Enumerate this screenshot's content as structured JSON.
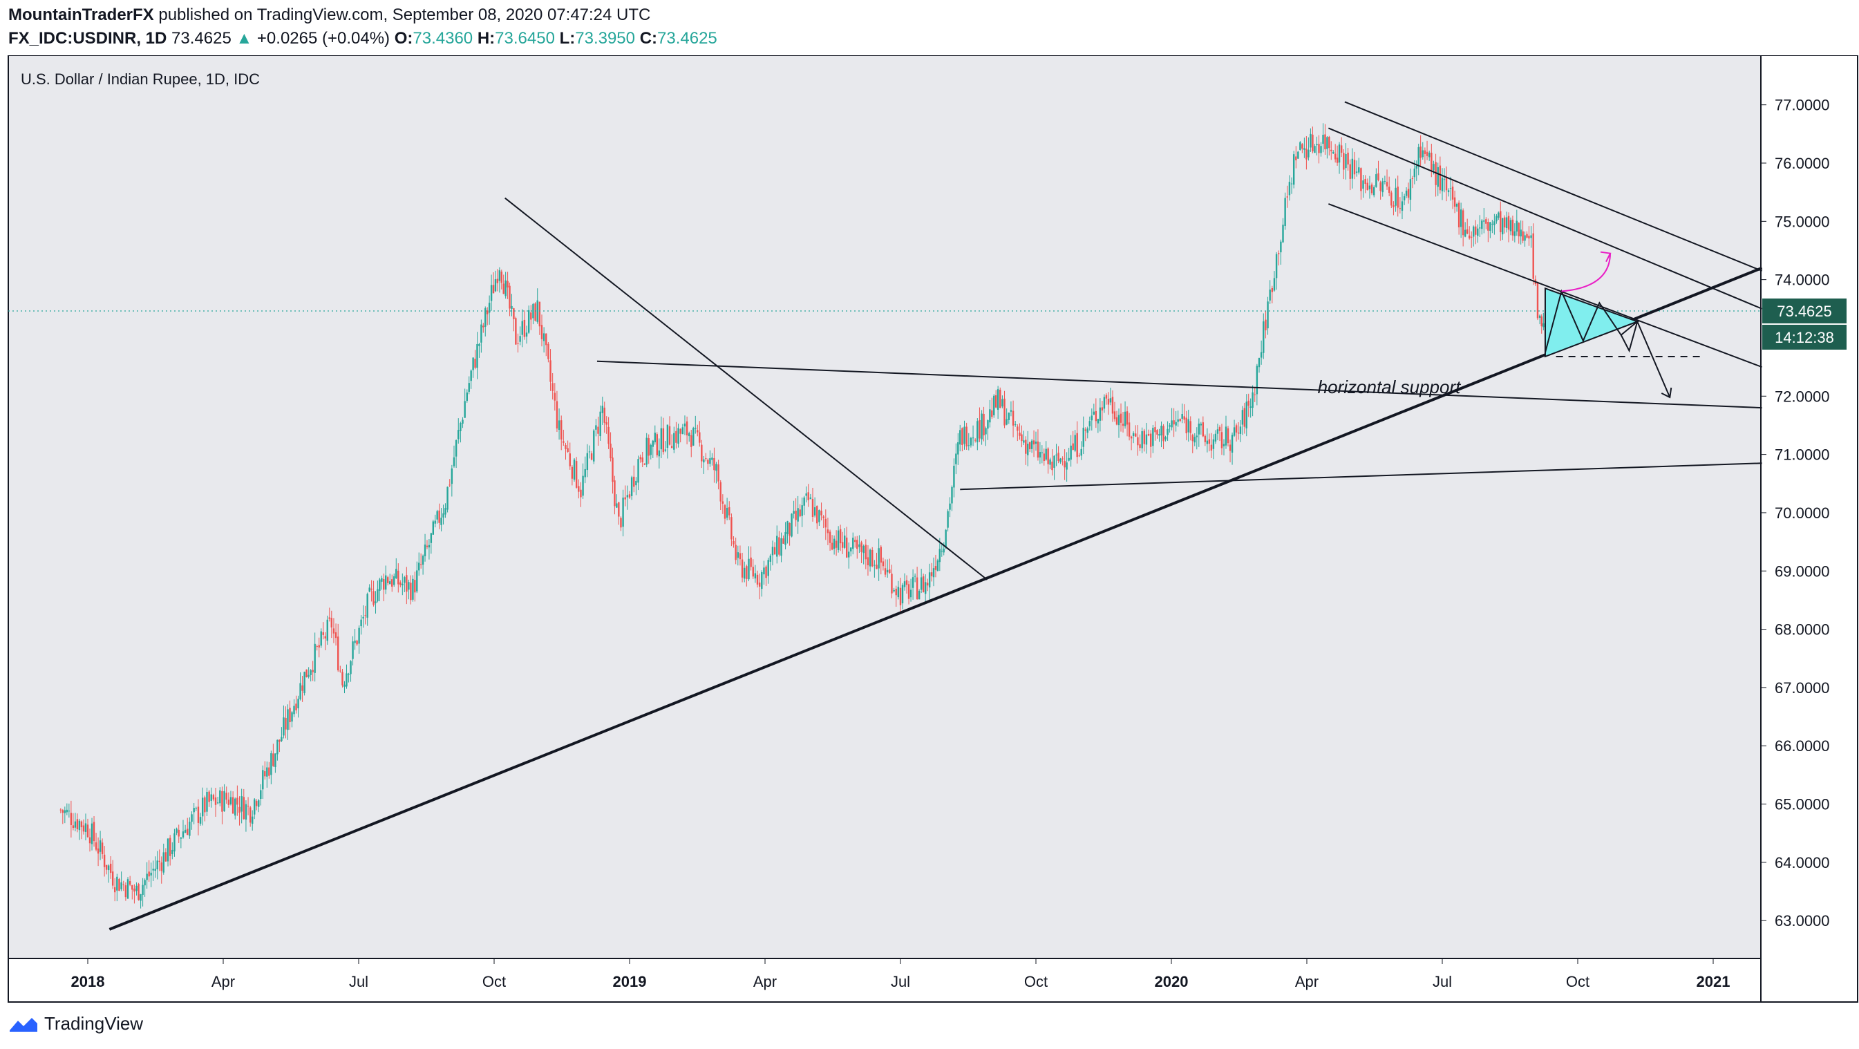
{
  "header": {
    "publisher": "MountainTraderFX",
    "published_text": "published on TradingView.com, September 08, 2020 07:47:24 UTC",
    "symbol": "FX_IDC:USDINR, 1D",
    "last": "73.4625",
    "change": "+0.0265 (+0.04%)",
    "o_label": "O:",
    "o_value": "73.4360",
    "h_label": "H:",
    "h_value": "73.6450",
    "l_label": "L:",
    "l_value": "73.3950",
    "c_label": "C:",
    "c_value": "73.4625"
  },
  "footer": {
    "brand": "TradingView"
  },
  "chart_data": {
    "type": "candlestick",
    "title": "U.S. Dollar / Indian Rupee, 1D, IDC",
    "ylim": [
      62.35,
      77.85
    ],
    "y_ticks": [
      "77.0000",
      "76.0000",
      "75.0000",
      "74.0000",
      "72.0000",
      "71.0000",
      "70.0000",
      "69.0000",
      "68.0000",
      "67.0000",
      "66.0000",
      "65.0000",
      "64.0000",
      "63.0000"
    ],
    "x_ticks": [
      "2018",
      "Apr",
      "Jul",
      "Oct",
      "2019",
      "Apr",
      "Jul",
      "Oct",
      "2020",
      "Apr",
      "Jul",
      "Oct",
      "2021"
    ],
    "current_price_label": "73.4625",
    "countdown_label": "14:12:38",
    "annotation": "horizontal support",
    "colors": {
      "up": "#26a69a",
      "down": "#ef5350",
      "background": "#e8e9ed",
      "triangle": "#80eeee",
      "arrow_up": "#e91ec5"
    },
    "anchors": [
      [
        2017.95,
        64.9
      ],
      [
        2018.0,
        64.6
      ],
      [
        2018.05,
        63.7
      ],
      [
        2018.09,
        63.5
      ],
      [
        2018.14,
        64.1
      ],
      [
        2018.18,
        64.6
      ],
      [
        2018.22,
        65.0
      ],
      [
        2018.26,
        65.1
      ],
      [
        2018.3,
        64.9
      ],
      [
        2018.35,
        66.0
      ],
      [
        2018.4,
        67.2
      ],
      [
        2018.45,
        68.1
      ],
      [
        2018.47,
        67.1
      ],
      [
        2018.52,
        68.5
      ],
      [
        2018.55,
        68.9
      ],
      [
        2018.6,
        68.7
      ],
      [
        2018.66,
        70.2
      ],
      [
        2018.7,
        72.1
      ],
      [
        2018.76,
        74.3
      ],
      [
        2018.79,
        73.0
      ],
      [
        2018.83,
        73.5
      ],
      [
        2018.87,
        71.4
      ],
      [
        2018.91,
        70.4
      ],
      [
        2018.95,
        71.8
      ],
      [
        2018.98,
        69.8
      ],
      [
        2019.02,
        71.0
      ],
      [
        2019.07,
        71.3
      ],
      [
        2019.11,
        71.4
      ],
      [
        2019.16,
        70.7
      ],
      [
        2019.2,
        69.1
      ],
      [
        2019.24,
        68.9
      ],
      [
        2019.28,
        69.5
      ],
      [
        2019.33,
        70.2
      ],
      [
        2019.37,
        69.6
      ],
      [
        2019.42,
        69.3
      ],
      [
        2019.46,
        69.2
      ],
      [
        2019.5,
        68.6
      ],
      [
        2019.55,
        68.8
      ],
      [
        2019.58,
        69.6
      ],
      [
        2019.61,
        71.3
      ],
      [
        2019.65,
        71.5
      ],
      [
        2019.68,
        71.9
      ],
      [
        2019.72,
        71.3
      ],
      [
        2019.78,
        70.8
      ],
      [
        2019.83,
        71.2
      ],
      [
        2019.88,
        72.0
      ],
      [
        2019.93,
        71.3
      ],
      [
        2019.97,
        71.3
      ],
      [
        2020.02,
        71.6
      ],
      [
        2020.07,
        71.2
      ],
      [
        2020.12,
        71.3
      ],
      [
        2020.15,
        72.0
      ],
      [
        2020.19,
        74.2
      ],
      [
        2020.23,
        76.2
      ],
      [
        2020.28,
        76.4
      ],
      [
        2020.31,
        76.2
      ],
      [
        2020.35,
        75.7
      ],
      [
        2020.39,
        75.6
      ],
      [
        2020.43,
        75.3
      ],
      [
        2020.46,
        76.3
      ],
      [
        2020.5,
        75.6
      ],
      [
        2020.55,
        74.8
      ],
      [
        2020.6,
        75.0
      ],
      [
        2020.63,
        74.8
      ],
      [
        2020.66,
        74.9
      ],
      [
        2020.68,
        73.2
      ],
      [
        2020.69,
        73.46
      ]
    ],
    "drawings": {
      "long_trendline": {
        "from": [
          2018.04,
          62.85
        ],
        "to": [
          2021.09,
          74.2
        ]
      },
      "descending_trendline_2018": {
        "from": [
          2018.77,
          75.4
        ],
        "to": [
          2019.66,
          68.85
        ]
      },
      "channel_top": {
        "from": [
          2020.32,
          77.05
        ],
        "to": [
          2021.09,
          74.15
        ]
      },
      "channel_middle": {
        "from": [
          2020.29,
          76.6
        ],
        "to": [
          2021.09,
          73.5
        ]
      },
      "channel_bottom": {
        "from": [
          2020.29,
          75.3
        ],
        "to": [
          2021.09,
          72.5
        ]
      },
      "resistance_line": {
        "from": [
          2018.94,
          72.6
        ],
        "to": [
          2021.09,
          71.8
        ]
      },
      "support_line": {
        "from": [
          2019.61,
          70.4
        ],
        "to": [
          2021.09,
          70.85
        ]
      },
      "dashed_support": {
        "from": [
          2020.71,
          72.68
        ],
        "to": [
          2020.98,
          72.68
        ]
      }
    }
  }
}
